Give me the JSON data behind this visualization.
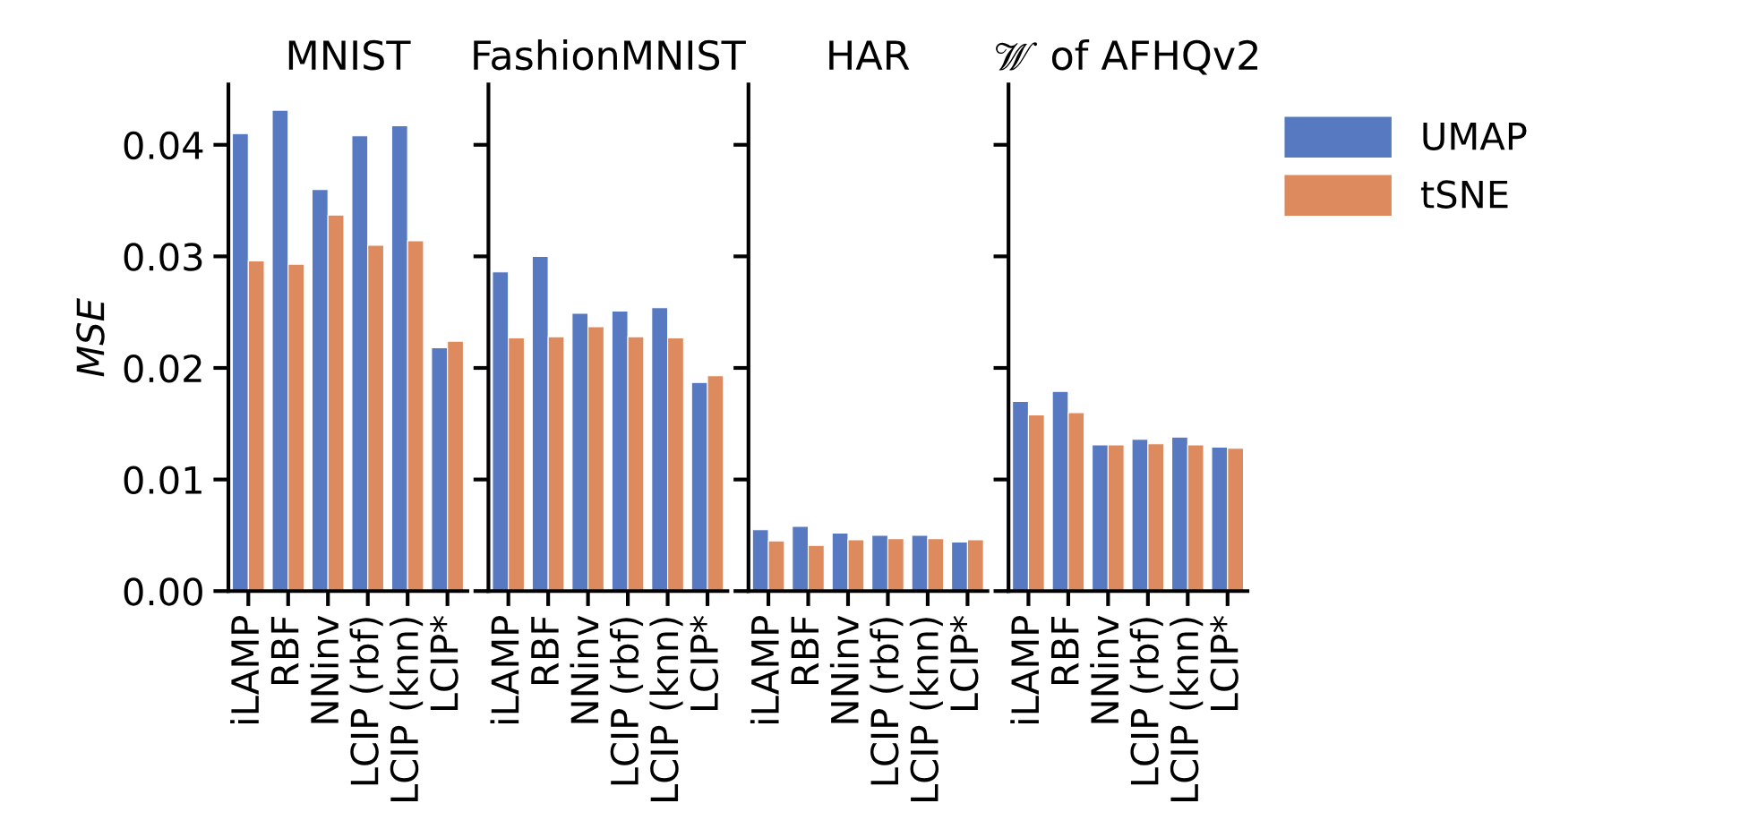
{
  "chart_data": [
    {
      "type": "bar",
      "title": "MNIST",
      "ylabel": "MSE",
      "categories": [
        "iLAMP",
        "RBF",
        "NNinv",
        "LCIP (rbf)",
        "LCIP (knn)",
        "LCIP*"
      ],
      "ylim": [
        0,
        0.0454
      ],
      "yticks": [
        {
          "value": 0,
          "label": "0.00"
        },
        {
          "value": 0.01,
          "label": "0.01"
        },
        {
          "value": 0.02,
          "label": "0.02"
        },
        {
          "value": 0.03,
          "label": "0.03"
        },
        {
          "value": 0.04,
          "label": "0.04"
        }
      ],
      "grid": false,
      "legend": false,
      "series": [
        {
          "color": "#5779c1",
          "values": [
            0.041,
            0.0431,
            0.036,
            0.0408,
            0.0417,
            0.0218
          ]
        },
        {
          "color": "#dd8a5e",
          "values": [
            0.0296,
            0.0293,
            0.0337,
            0.031,
            0.0314,
            0.0224
          ]
        }
      ]
    },
    {
      "type": "bar",
      "title": "FashionMNIST",
      "categories": [
        "iLAMP",
        "RBF",
        "NNinv",
        "LCIP (rbf)",
        "LCIP (knn)",
        "LCIP*"
      ],
      "ylim": [
        0,
        0.0454
      ],
      "yticks": [
        0,
        0.01,
        0.02,
        0.03,
        0.04
      ],
      "tick_labels": "x",
      "grid": false,
      "legend": false,
      "series": [
        {
          "color": "#5779c1",
          "values": [
            0.0286,
            0.03,
            0.0249,
            0.0251,
            0.0254,
            0.0187
          ]
        },
        {
          "color": "#dd8a5e",
          "values": [
            0.0227,
            0.0228,
            0.0237,
            0.0228,
            0.0227,
            0.0193
          ]
        }
      ]
    },
    {
      "type": "bar",
      "title": "HAR",
      "categories": [
        "iLAMP",
        "RBF",
        "NNinv",
        "LCIP (rbf)",
        "LCIP (knn)",
        "LCIP*"
      ],
      "ylim": [
        0,
        0.0454
      ],
      "yticks": [
        0,
        0.01,
        0.02,
        0.03,
        0.04
      ],
      "tick_labels": "x",
      "grid": false,
      "legend": false,
      "series": [
        {
          "color": "#5779c1",
          "values": [
            0.0055,
            0.0058,
            0.0052,
            0.005,
            0.005,
            0.0044
          ]
        },
        {
          "color": "#dd8a5e",
          "values": [
            0.0045,
            0.0041,
            0.0046,
            0.0047,
            0.0047,
            0.0046
          ]
        }
      ]
    },
    {
      "type": "bar",
      "title": "𝒲 of AFHQv2",
      "categories": [
        "iLAMP",
        "RBF",
        "NNinv",
        "LCIP (rbf)",
        "LCIP (knn)",
        "LCIP*"
      ],
      "ylim": [
        0,
        0.0454
      ],
      "yticks": [
        0,
        0.01,
        0.02,
        0.03,
        0.04
      ],
      "tick_labels": "x",
      "grid": false,
      "legend": "top right",
      "series": [
        {
          "name": "UMAP",
          "color": "#5779c1",
          "values": [
            0.017,
            0.0179,
            0.0131,
            0.0136,
            0.0138,
            0.0129
          ]
        },
        {
          "name": "tSNE",
          "color": "#dd8a5e",
          "values": [
            0.0158,
            0.016,
            0.0131,
            0.0132,
            0.0131,
            0.0128
          ]
        }
      ]
    }
  ]
}
